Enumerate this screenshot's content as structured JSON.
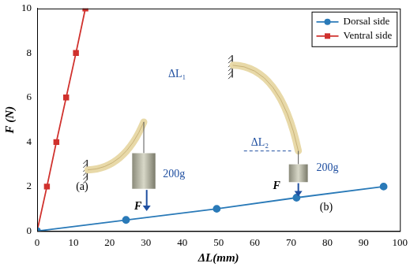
{
  "chart_data": {
    "type": "line",
    "x_label": "ΔL(mm)",
    "y_label": "F (N)",
    "xlim": [
      0,
      100
    ],
    "xticks": [
      0,
      10,
      20,
      30,
      40,
      50,
      60,
      70,
      80,
      90,
      100
    ],
    "ylim": [
      0,
      10
    ],
    "yticks": [
      0,
      2,
      4,
      6,
      8,
      10
    ],
    "grid": false,
    "legend": "upper right",
    "series": [
      {
        "name": "Dorsal side",
        "color": "#2a7ab8",
        "marker": "circle",
        "line_style": "solid",
        "x": [
          0,
          24.5,
          49.5,
          71.5,
          95.5
        ],
        "values": [
          0,
          0.5,
          1.0,
          1.5,
          2.0
        ]
      },
      {
        "name": "Ventral side",
        "color": "#d0312d",
        "marker": "square",
        "line_style": "solid",
        "x": [
          0,
          2.7,
          5.3,
          8.0,
          10.7,
          13.3
        ],
        "values": [
          0,
          2,
          4,
          6,
          8,
          10
        ]
      }
    ],
    "annotations": [
      "(a)",
      "(b)",
      "ΔL₁",
      "200g",
      "F",
      "ΔL₂",
      "200g",
      "F"
    ]
  }
}
